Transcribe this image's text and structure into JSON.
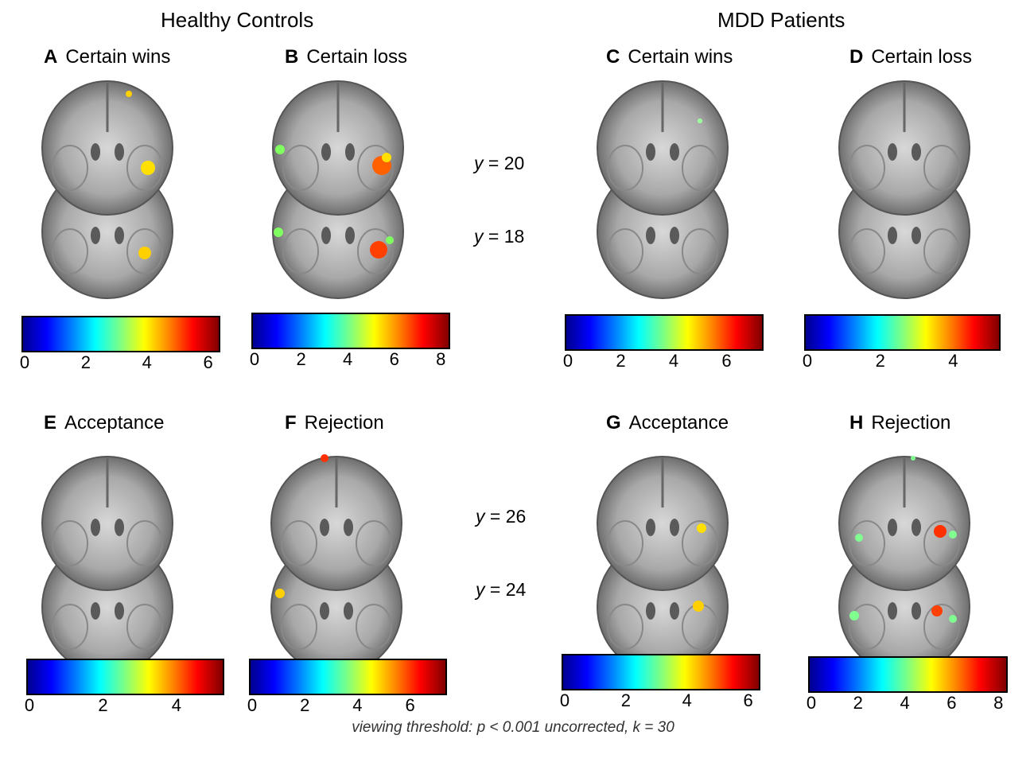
{
  "groups": {
    "left": "Healthy Controls",
    "right": "MDD Patients"
  },
  "coords": {
    "top_upper": {
      "axis": "y",
      "value": "= 20"
    },
    "top_lower": {
      "axis": "y",
      "value": "= 18"
    },
    "bottom_upper": {
      "axis": "y",
      "value": "= 26"
    },
    "bottom_lower": {
      "axis": "y",
      "value": "= 24"
    }
  },
  "panels": [
    {
      "letter": "A",
      "title": "Certain wins",
      "ticks": [
        "0",
        "2",
        "4",
        "6"
      ],
      "scale_max": 6.4
    },
    {
      "letter": "B",
      "title": "Certain loss",
      "ticks": [
        "0",
        "2",
        "4",
        "6",
        "8"
      ],
      "scale_max": 8.4
    },
    {
      "letter": "C",
      "title": "Certain wins",
      "ticks": [
        "0",
        "2",
        "4",
        "6"
      ],
      "scale_max": 7.4
    },
    {
      "letter": "D",
      "title": "Certain loss",
      "ticks": [
        "0",
        "2",
        "4"
      ],
      "scale_max": 5.3
    },
    {
      "letter": "E",
      "title": "Acceptance",
      "ticks": [
        "0",
        "2",
        "4"
      ],
      "scale_max": 5.3
    },
    {
      "letter": "F",
      "title": "Rejection",
      "ticks": [
        "0",
        "2",
        "4",
        "6"
      ],
      "scale_max": 7.4
    },
    {
      "letter": "G",
      "title": "Acceptance",
      "ticks": [
        "0",
        "2",
        "4",
        "6"
      ],
      "scale_max": 6.4
    },
    {
      "letter": "H",
      "title": "Rejection",
      "ticks": [
        "0",
        "2",
        "4",
        "6",
        "8"
      ],
      "scale_max": 8.4
    }
  ],
  "footer": "viewing threshold: p < 0.001 uncorrected, k = 30"
}
